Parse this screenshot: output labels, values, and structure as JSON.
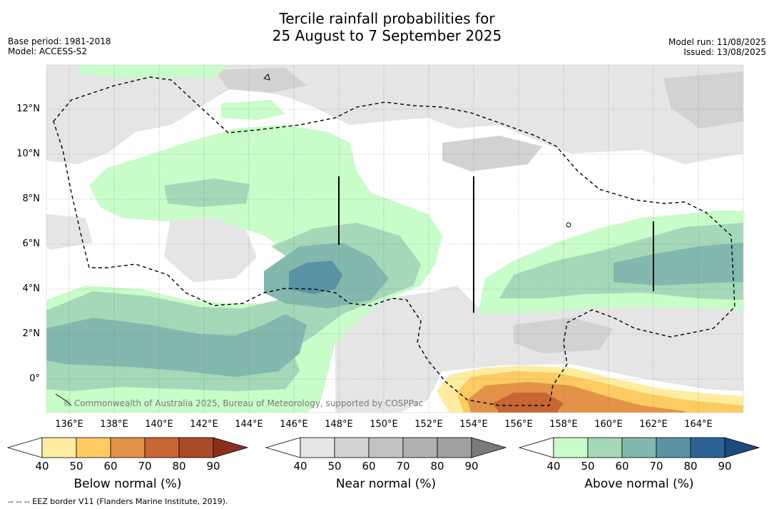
{
  "header": {
    "title_line1": "Tercile rainfall probabilities for",
    "title_line2": "25 August to 7 September 2025",
    "base_period": "Base period: 1981-2018",
    "model": "Model: ACCESS-S2",
    "model_run": "Model run: 11/08/2025",
    "issued": "Issued: 13/08/2025"
  },
  "map": {
    "lat_labels": [
      "12°N",
      "10°N",
      "8°N",
      "6°N",
      "4°N",
      "2°N",
      "0°"
    ],
    "lon_labels": [
      "136°E",
      "138°E",
      "140°E",
      "142°E",
      "144°E",
      "146°E",
      "148°E",
      "150°E",
      "152°E",
      "154°E",
      "156°E",
      "158°E",
      "160°E",
      "162°E",
      "164°E"
    ],
    "copyright": "© Commonwealth of Australia 2025, Bureau of Meteorology, supported by COSPPac"
  },
  "colorbars": {
    "tick_labels": [
      "40",
      "50",
      "60",
      "70",
      "80",
      "90"
    ],
    "below": {
      "title": "Below normal (%)",
      "colors": [
        "#ffffff",
        "#feeda0",
        "#fdcb62",
        "#e29347",
        "#c86534",
        "#a84a28",
        "#8a2f1e"
      ]
    },
    "near": {
      "title": "Near normal (%)",
      "colors": [
        "#ffffff",
        "#e5e5e5",
        "#d2d2d2",
        "#c2c2c2",
        "#b0b0b0",
        "#a0a0a0",
        "#7a7a7a"
      ]
    },
    "above": {
      "title": "Above normal (%)",
      "colors": [
        "#ffffff",
        "#c8fcc8",
        "#a4d8b8",
        "#82b8ae",
        "#5a93a3",
        "#2c6394",
        "#1b4a7e"
      ]
    }
  },
  "footnote": "--  --  -- EEZ border V11 (Flanders Marine Institute, 2019)."
}
